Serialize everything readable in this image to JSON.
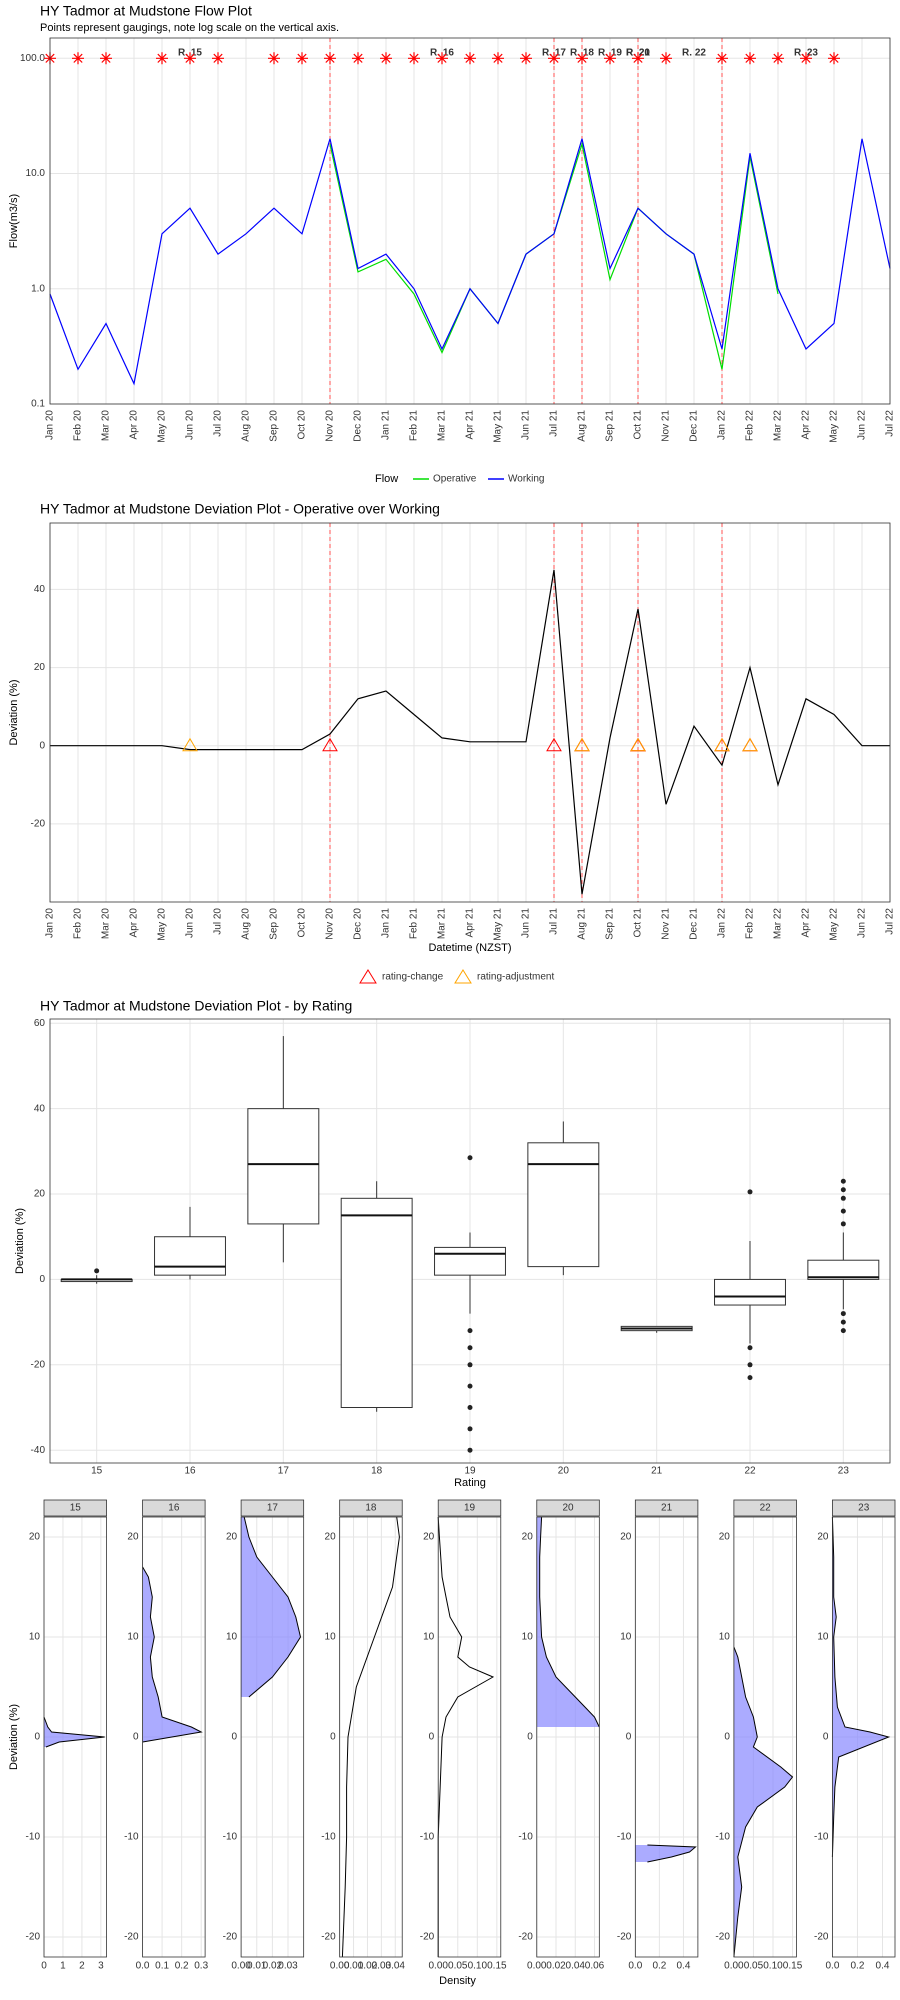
{
  "chart_data": [
    {
      "type": "line",
      "title": "HY Tadmor at Mudstone Flow Plot",
      "subtitle": "Points represent gaugings, note log scale on the vertical axis.",
      "y_label": "Flow(m3/s)",
      "legend_title": "Flow",
      "legend_position": "bottom",
      "log_y": true,
      "grid": true,
      "x": [
        "2020-01",
        "2020-02",
        "2020-03",
        "2020-04",
        "2020-05",
        "2020-06",
        "2020-07",
        "2020-08",
        "2020-09",
        "2020-10",
        "2020-11",
        "2020-12",
        "2021-01",
        "2021-02",
        "2021-03",
        "2021-04",
        "2021-05",
        "2021-06",
        "2021-07",
        "2021-08",
        "2021-09",
        "2021-10",
        "2021-11",
        "2021-12",
        "2022-01",
        "2022-02",
        "2022-03",
        "2022-04",
        "2022-05",
        "2022-06",
        "2022-07"
      ],
      "xlim": [
        "2020-01",
        "2022-07"
      ],
      "xticks": [
        {
          "value": "2020-01",
          "label": "Jan 20"
        },
        {
          "value": "2020-02",
          "label": "Feb 20"
        },
        {
          "value": "2020-03",
          "label": "Mar 20"
        },
        {
          "value": "2020-04",
          "label": "Apr 20"
        },
        {
          "value": "2020-05",
          "label": "May 20"
        },
        {
          "value": "2020-06",
          "label": "Jun 20"
        },
        {
          "value": "2020-07",
          "label": "Jul 20"
        },
        {
          "value": "2020-08",
          "label": "Aug 20"
        },
        {
          "value": "2020-09",
          "label": "Sep 20"
        },
        {
          "value": "2020-10",
          "label": "Oct 20"
        },
        {
          "value": "2020-11",
          "label": "Nov 20"
        },
        {
          "value": "2020-12",
          "label": "Dec 20"
        },
        {
          "value": "2021-01",
          "label": "Jan 21"
        },
        {
          "value": "2021-02",
          "label": "Feb 21"
        },
        {
          "value": "2021-03",
          "label": "Mar 21"
        },
        {
          "value": "2021-04",
          "label": "Apr 21"
        },
        {
          "value": "2021-05",
          "label": "May 21"
        },
        {
          "value": "2021-06",
          "label": "Jun 21"
        },
        {
          "value": "2021-07",
          "label": "Jul 21"
        },
        {
          "value": "2021-08",
          "label": "Aug 21"
        },
        {
          "value": "2021-09",
          "label": "Sep 21"
        },
        {
          "value": "2021-10",
          "label": "Oct 21"
        },
        {
          "value": "2021-11",
          "label": "Nov 21"
        },
        {
          "value": "2021-12",
          "label": "Dec 21"
        },
        {
          "value": "2022-01",
          "label": "Jan 22"
        },
        {
          "value": "2022-02",
          "label": "Feb 22"
        },
        {
          "value": "2022-03",
          "label": "Mar 22"
        },
        {
          "value": "2022-04",
          "label": "Apr 22"
        },
        {
          "value": "2022-05",
          "label": "May 22"
        },
        {
          "value": "2022-06",
          "label": "Jun 22"
        },
        {
          "value": "2022-07",
          "label": "Jul 22"
        }
      ],
      "ylim": [
        0.1,
        150
      ],
      "yticks": [
        0.1,
        {
          "value": 1,
          "label": "1.0"
        },
        {
          "value": 10,
          "label": "10.0"
        },
        {
          "value": 100,
          "label": "100.0"
        }
      ],
      "series": [
        {
          "name": "Operative",
          "color": "#00dd00",
          "values": [
            null,
            null,
            null,
            null,
            null,
            null,
            null,
            null,
            null,
            null,
            18,
            1.4,
            1.8,
            0.9,
            0.28,
            1,
            0.5,
            2,
            3,
            18,
            1.2,
            5,
            3,
            2,
            0.2,
            14,
            0.9,
            null,
            null,
            null,
            null
          ]
        },
        {
          "name": "Working",
          "color": "#0000ff",
          "values": [
            0.9,
            0.2,
            0.5,
            0.15,
            3,
            5,
            2,
            3,
            5,
            3,
            20,
            1.5,
            2,
            1,
            0.3,
            1,
            0.5,
            2,
            3,
            20,
            1.5,
            5,
            3,
            2,
            0.3,
            15,
            1,
            0.3,
            0.5,
            20,
            1.5
          ]
        }
      ],
      "gaugings": {
        "color": "#ff0000",
        "x": [
          "2020-01",
          "2020-02",
          "2020-03",
          "2020-05",
          "2020-06",
          "2020-07",
          "2020-09",
          "2020-10",
          "2020-11",
          "2020-12",
          "2021-01",
          "2021-02",
          "2021-03",
          "2021-04",
          "2021-05",
          "2021-06",
          "2021-07",
          "2021-08",
          "2021-09",
          "2021-10",
          "2021-11",
          "2022-01",
          "2022-02",
          "2022-03",
          "2022-04",
          "2022-05"
        ],
        "values": [
          100,
          100,
          100,
          100,
          100,
          100,
          100,
          100,
          100,
          100,
          100,
          100,
          100,
          100,
          100,
          100,
          100,
          100,
          100,
          100,
          100,
          100,
          100,
          100,
          100,
          100
        ]
      },
      "ratings": {
        "line_color": "#ff5050",
        "labels": [
          "R. 15",
          "R. 16",
          "R. 17",
          "R. 18",
          "R. 19",
          "R. 20",
          "R. 21",
          "R. 22",
          "R. 23"
        ],
        "label_x": [
          "2020-06",
          "2021-03",
          "2021-07",
          "2021-08",
          "2021-09",
          "2021-10",
          "2021-10",
          "2021-12",
          "2022-04"
        ],
        "start": [
          null,
          "2020-11",
          "2021-07",
          "2021-08",
          "2021-08",
          "2021-10",
          "2021-10",
          "2021-10",
          "2022-01"
        ]
      }
    },
    {
      "type": "line",
      "title": "HY Tadmor at Mudstone Deviation Plot - Operative over Working",
      "x_label": "Datetime (NZST)",
      "y_label": "Deviation (%)",
      "legend_position": "bottom",
      "grid": true,
      "x": [
        "2020-01",
        "2020-02",
        "2020-03",
        "2020-04",
        "2020-05",
        "2020-06",
        "2020-07",
        "2020-08",
        "2020-09",
        "2020-10",
        "2020-11",
        "2020-12",
        "2021-01",
        "2021-02",
        "2021-03",
        "2021-04",
        "2021-05",
        "2021-06",
        "2021-07",
        "2021-08",
        "2021-09",
        "2021-10",
        "2021-11",
        "2021-12",
        "2022-01",
        "2022-02",
        "2022-03",
        "2022-04",
        "2022-05",
        "2022-06",
        "2022-07"
      ],
      "xlim": [
        "2020-01",
        "2022-07"
      ],
      "ylim": [
        -40,
        57
      ],
      "yticks": [
        -20,
        0,
        20,
        40
      ],
      "series": [
        {
          "color": "#000000",
          "values": [
            0,
            0,
            0,
            0,
            0,
            -1,
            -1,
            -1,
            -1,
            -1,
            3,
            12,
            14,
            8,
            2,
            1,
            1,
            1,
            45,
            -38,
            2,
            35,
            -15,
            5,
            -5,
            20,
            -10,
            12,
            8,
            0,
            0
          ]
        }
      ],
      "rating_lines": {
        "color": "#ff5050",
        "x": [
          "2020-11",
          "2021-07",
          "2021-08",
          "2021-08",
          "2021-10",
          "2021-10",
          "2021-10",
          "2022-01"
        ]
      },
      "markers": [
        {
          "name": "rating-change",
          "color": "#ff0000",
          "x": [
            "2020-11",
            "2021-07",
            "2021-08",
            "2021-10",
            "2021-10",
            "2022-01",
            "2022-02"
          ],
          "values": [
            0,
            0,
            0,
            0,
            0,
            0,
            0
          ]
        },
        {
          "name": "rating-adjustment",
          "color": "#ffa500",
          "x": [
            "2020-06",
            "2021-08",
            "2021-10",
            "2022-01",
            "2022-02"
          ],
          "values": [
            0,
            0,
            0,
            0,
            0
          ]
        }
      ]
    },
    {
      "type": "box",
      "title": "HY Tadmor at Mudstone Deviation Plot - by Rating",
      "x_label": "Rating",
      "y_label": "Deviation (%)",
      "grid": true,
      "categories": [
        "15",
        "16",
        "17",
        "18",
        "19",
        "20",
        "21",
        "22",
        "23"
      ],
      "ylim": [
        -43,
        61
      ],
      "yticks": [
        -40,
        -20,
        0,
        20,
        40,
        60
      ],
      "min": [
        -1,
        0,
        4,
        -31,
        -8,
        1,
        -12.5,
        -15,
        -7
      ],
      "q1": [
        -0.5,
        1,
        13,
        -30,
        1,
        3,
        -12,
        -6,
        0
      ],
      "median": [
        0,
        3,
        27,
        15,
        6,
        27,
        -11.5,
        -4,
        0.5
      ],
      "q3": [
        0,
        10,
        40,
        19,
        7.5,
        32,
        -11,
        0,
        4.5
      ],
      "max": [
        1,
        17,
        57,
        23,
        11,
        37,
        -11,
        9,
        11
      ],
      "outliers": [
        [
          2
        ],
        [],
        [],
        [],
        [
          28.5,
          -12,
          -16,
          -20,
          -25,
          -30,
          -35,
          -40
        ],
        [],
        [],
        [
          20.5,
          -16,
          -20,
          -23
        ],
        [
          13,
          16,
          19,
          21,
          23,
          -8,
          -10,
          -12
        ]
      ]
    },
    {
      "type": "density",
      "x_label": "Density",
      "y_label": "Deviation (%)",
      "grid": true,
      "ylim": [
        -22,
        22
      ],
      "yticks": [
        -20,
        -10,
        0,
        10,
        20
      ],
      "panels": [
        {
          "label": "15",
          "xlim": [
            0,
            3.3
          ],
          "xticks": [
            0,
            1,
            2,
            3
          ],
          "fill": "#8888ff",
          "deviation": [
            -1,
            -0.5,
            0,
            0.5,
            1,
            1.5,
            2
          ],
          "density": [
            0.1,
            0.8,
            3.2,
            0.4,
            0.2,
            0.1,
            0
          ]
        },
        {
          "label": "16",
          "xlim": [
            0,
            0.32
          ],
          "xticks": [
            {
              "value": 0,
              "label": "0.0"
            },
            0.1,
            0.2,
            0.3
          ],
          "fill": "#8888ff",
          "deviation": [
            -0.5,
            0,
            0.5,
            1,
            2,
            4,
            6,
            8,
            10,
            12,
            14,
            16,
            17
          ],
          "density": [
            0,
            0.15,
            0.3,
            0.25,
            0.1,
            0.08,
            0.05,
            0.04,
            0.06,
            0.04,
            0.05,
            0.03,
            0
          ]
        },
        {
          "label": "17",
          "xlim": [
            0,
            0.04
          ],
          "xticks": [
            {
              "value": 0,
              "label": "0.00"
            },
            0.01,
            0.02,
            0.03
          ],
          "fill": "#8888ff",
          "deviation": [
            4,
            6,
            8,
            10,
            12,
            14,
            16,
            18,
            20,
            22
          ],
          "density": [
            0.005,
            0.02,
            0.03,
            0.038,
            0.035,
            0.03,
            0.02,
            0.01,
            0.005,
            0.002
          ]
        },
        {
          "label": "18",
          "xlim": [
            0,
            0.045
          ],
          "xticks": [
            {
              "value": 0,
              "label": "0.00"
            },
            0.01,
            0.02,
            0.03,
            0.04
          ],
          "fill": null,
          "deviation": [
            -22,
            -15,
            -10,
            -5,
            0,
            5,
            10,
            15,
            20,
            22
          ],
          "density": [
            0.002,
            0.004,
            0.005,
            0.005,
            0.006,
            0.012,
            0.025,
            0.038,
            0.043,
            0.041
          ]
        },
        {
          "label": "19",
          "xlim": [
            0,
            0.16
          ],
          "xticks": [
            {
              "value": 0,
              "label": "0.00"
            },
            0.05,
            {
              "value": 0.1,
              "label": "0.10"
            },
            0.15
          ],
          "fill": null,
          "deviation": [
            -22,
            -10,
            0,
            2,
            4,
            6,
            7,
            8,
            10,
            12,
            14,
            16,
            20,
            22
          ],
          "density": [
            0,
            0,
            0.01,
            0.02,
            0.05,
            0.14,
            0.08,
            0.05,
            0.06,
            0.03,
            0.02,
            0.01,
            0.003,
            0
          ]
        },
        {
          "label": "20",
          "xlim": [
            0,
            0.065
          ],
          "xticks": [
            {
              "value": 0,
              "label": "0.00"
            },
            0.02,
            0.04,
            0.06
          ],
          "fill": "#8888ff",
          "deviation": [
            1,
            2,
            3,
            4,
            6,
            8,
            10,
            14,
            18,
            20,
            22
          ],
          "density": [
            0.065,
            0.06,
            0.05,
            0.04,
            0.02,
            0.01,
            0.005,
            0.003,
            0.003,
            0.004,
            0.005
          ]
        },
        {
          "label": "21",
          "xlim": [
            0,
            0.52
          ],
          "xticks": [
            {
              "value": 0,
              "label": "0.0"
            },
            0.2,
            0.4
          ],
          "fill": "#8888ff",
          "deviation": [
            -12.5,
            -12,
            -11.5,
            -11,
            -10.8
          ],
          "density": [
            0.1,
            0.3,
            0.45,
            0.5,
            0.1
          ]
        },
        {
          "label": "22",
          "xlim": [
            0,
            0.16
          ],
          "xticks": [
            {
              "value": 0,
              "label": "0.00"
            },
            0.05,
            {
              "value": 0.1,
              "label": "0.10"
            },
            0.15
          ],
          "fill": "#8888ff",
          "deviation": [
            -22,
            -18,
            -15,
            -12,
            -9,
            -7,
            -5,
            -4,
            -3,
            -1,
            0,
            2,
            4,
            6,
            8,
            9
          ],
          "density": [
            0,
            0.01,
            0.02,
            0.01,
            0.03,
            0.06,
            0.13,
            0.15,
            0.12,
            0.05,
            0.06,
            0.05,
            0.03,
            0.02,
            0.01,
            0
          ]
        },
        {
          "label": "23",
          "xlim": [
            0,
            0.5
          ],
          "xticks": [
            {
              "value": 0,
              "label": "0.0"
            },
            0.2,
            0.4
          ],
          "fill": "#8888ff",
          "deviation": [
            -12,
            -8,
            -5,
            -2,
            0,
            0.5,
            1,
            3,
            6,
            10,
            12,
            14,
            18,
            22
          ],
          "density": [
            0,
            0.01,
            0.02,
            0.05,
            0.45,
            0.3,
            0.1,
            0.04,
            0.02,
            0.01,
            0.03,
            0.01,
            0.01,
            0
          ]
        }
      ]
    }
  ]
}
